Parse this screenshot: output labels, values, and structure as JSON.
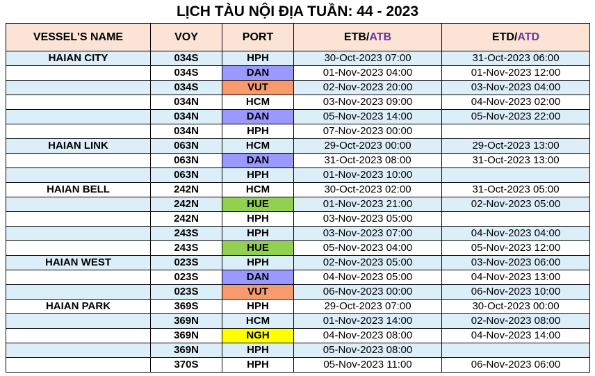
{
  "title": "LỊCH TÀU NỘI ĐỊA TUẦN: 44 - 2023",
  "colors": {
    "header_bg": "#fbe3d6",
    "alt_row_bg": "#dceef8",
    "DAN": "#9999ff",
    "VUT": "#f79b6e",
    "HUE": "#92d050",
    "NGH": "#ffff00",
    "atb_atd_text": "#7030a0"
  },
  "headers": {
    "vessel": "VESSEL'S NAME",
    "voy": "VOY",
    "port": "PORT",
    "etb_a": "ETB/",
    "etb_b": "ATB",
    "etd_a": "ETD/",
    "etd_b": "ATD"
  },
  "rows": [
    {
      "vessel": "HAIAN CITY",
      "voy": "034S",
      "port": "HPH",
      "etb": "30-Oct-2023 07:00",
      "etd": "31-Oct-2023 06:00"
    },
    {
      "vessel": "",
      "voy": "034S",
      "port": "DAN",
      "etb": "01-Nov-2023 04:00",
      "etd": "01-Nov-2023 12:00"
    },
    {
      "vessel": "",
      "voy": "034S",
      "port": "VUT",
      "etb": "02-Nov-2023 20:00",
      "etd": "03-Nov-2023 04:00"
    },
    {
      "vessel": "",
      "voy": "034N",
      "port": "HCM",
      "etb": "03-Nov-2023 09:00",
      "etd": "04-Nov-2023 02:00"
    },
    {
      "vessel": "",
      "voy": "034N",
      "port": "DAN",
      "etb": "05-Nov-2023 14:00",
      "etd": "05-Nov-2023 22:00"
    },
    {
      "vessel": "",
      "voy": "034N",
      "port": "HPH",
      "etb": "07-Nov-2023 00:00",
      "etd": ""
    },
    {
      "vessel": "HAIAN LINK",
      "voy": "063N",
      "port": "HCM",
      "etb": "29-Oct-2023 00:00",
      "etd": "29-Oct-2023 13:00"
    },
    {
      "vessel": "",
      "voy": "063N",
      "port": "DAN",
      "etb": "31-Oct-2023 08:00",
      "etd": "31-Oct-2023 13:00"
    },
    {
      "vessel": "",
      "voy": "063N",
      "port": "HPH",
      "etb": "01-Nov-2023 10:00",
      "etd": ""
    },
    {
      "vessel": "HAIAN BELL",
      "voy": "242N",
      "port": "HCM",
      "etb": "30-Oct-2023 02:00",
      "etd": "31-Oct-2023 05:00"
    },
    {
      "vessel": "",
      "voy": "242N",
      "port": "HUE",
      "etb": "01-Nov-2023 21:00",
      "etd": "02-Nov-2023 05:00"
    },
    {
      "vessel": "",
      "voy": "242N",
      "port": "HPH",
      "etb": "03-Nov-2023 05:00",
      "etd": ""
    },
    {
      "vessel": "",
      "voy": "243S",
      "port": "HPH",
      "etb": "03-Nov-2023 07:00",
      "etd": "04-Nov-2023 04:00"
    },
    {
      "vessel": "",
      "voy": "243S",
      "port": "HUE",
      "etb": "05-Nov-2023 04:00",
      "etd": "05-Nov-2023 12:00"
    },
    {
      "vessel": "HAIAN WEST",
      "voy": "023S",
      "port": "HPH",
      "etb": "02-Nov-2023 05:00",
      "etd": "03-Nov-2023 06:00"
    },
    {
      "vessel": "",
      "voy": "023S",
      "port": "DAN",
      "etb": "04-Nov-2023 05:00",
      "etd": "04-Nov-2023 13:00"
    },
    {
      "vessel": "",
      "voy": "023S",
      "port": "VUT",
      "etb": "06-Nov-2023 00:00",
      "etd": "06-Nov-2023 10:00"
    },
    {
      "vessel": "HAIAN PARK",
      "voy": "369S",
      "port": "HPH",
      "etb": "29-Oct-2023 07:00",
      "etd": "30-Oct-2023 00:00"
    },
    {
      "vessel": "",
      "voy": "369N",
      "port": "HCM",
      "etb": "01-Nov-2023 14:00",
      "etd": "02-Nov-2023 08:00"
    },
    {
      "vessel": "",
      "voy": "369N",
      "port": "NGH",
      "etb": "04-Nov-2023 08:00",
      "etd": "04-Nov-2023 14:00"
    },
    {
      "vessel": "",
      "voy": "369N",
      "port": "HPH",
      "etb": "05-Nov-2023 08:00",
      "etd": ""
    },
    {
      "vessel": "",
      "voy": "370S",
      "port": "HPH",
      "etb": "05-Nov-2023 11:00",
      "etd": "06-Nov-2023 06:00"
    }
  ]
}
